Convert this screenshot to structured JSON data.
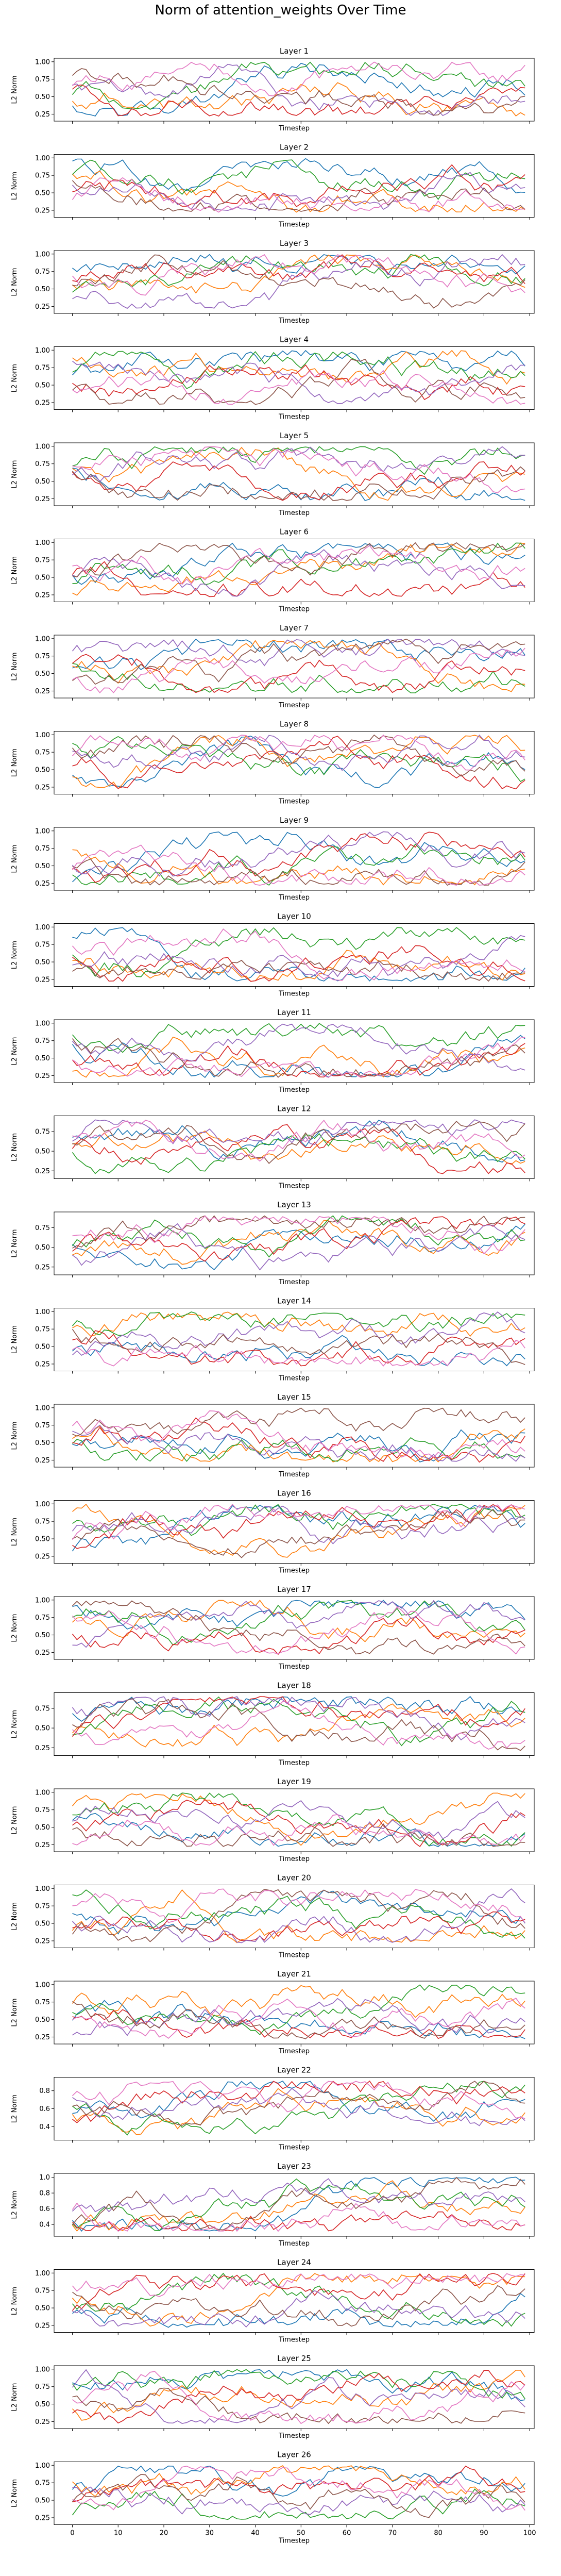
{
  "figure": {
    "title": "Norm of attention_weights Over Time"
  },
  "chart_data": {
    "type": "line",
    "title": "Norm of attention_weights Over Time",
    "xlabel": "Timestep",
    "ylabel": "L2 Norm",
    "xlim": [
      -4,
      101
    ],
    "xticks": [
      0,
      10,
      20,
      30,
      40,
      50,
      60,
      70,
      80,
      90,
      100
    ],
    "series_count_per_panel": 7,
    "series_colors": [
      "#1f77b4",
      "#ff7f0e",
      "#2ca02c",
      "#d62728",
      "#9467bd",
      "#8c564b",
      "#e377c2"
    ],
    "grid": false,
    "legend": false,
    "panels": [
      {
        "title": "Layer 1",
        "yticks": [
          "0.25",
          "0.50",
          "0.75",
          "1.00"
        ],
        "ylim": [
          0.15,
          1.05
        ],
        "show_xlabel": true
      },
      {
        "title": "Layer 2",
        "yticks": [
          "0.25",
          "0.50",
          "0.75",
          "1.00"
        ],
        "ylim": [
          0.15,
          1.05
        ],
        "show_xlabel": true
      },
      {
        "title": "Layer 3",
        "yticks": [
          "0.25",
          "0.50",
          "0.75",
          "1.00"
        ],
        "ylim": [
          0.15,
          1.05
        ],
        "show_xlabel": true
      },
      {
        "title": "Layer 4",
        "yticks": [
          "0.25",
          "0.50",
          "0.75",
          "1.00"
        ],
        "ylim": [
          0.15,
          1.05
        ],
        "show_xlabel": true
      },
      {
        "title": "Layer 5",
        "yticks": [
          "0.25",
          "0.50",
          "0.75",
          "1.00"
        ],
        "ylim": [
          0.15,
          1.05
        ],
        "show_xlabel": true
      },
      {
        "title": "Layer 6",
        "yticks": [
          "0.25",
          "0.50",
          "0.75",
          "1.00"
        ],
        "ylim": [
          0.15,
          1.05
        ],
        "show_xlabel": true
      },
      {
        "title": "Layer 7",
        "yticks": [
          "0.25",
          "0.50",
          "0.75",
          "1.00"
        ],
        "ylim": [
          0.15,
          1.05
        ],
        "show_xlabel": true
      },
      {
        "title": "Layer 8",
        "yticks": [
          "0.25",
          "0.50",
          "0.75",
          "1.00"
        ],
        "ylim": [
          0.15,
          1.05
        ],
        "show_xlabel": true
      },
      {
        "title": "Layer 9",
        "yticks": [
          "0.25",
          "0.50",
          "0.75",
          "1.00"
        ],
        "ylim": [
          0.15,
          1.05
        ],
        "show_xlabel": true
      },
      {
        "title": "Layer 10",
        "yticks": [
          "0.25",
          "0.50",
          "0.75",
          "1.00"
        ],
        "ylim": [
          0.15,
          1.05
        ],
        "show_xlabel": true
      },
      {
        "title": "Layer 11",
        "yticks": [
          "0.25",
          "0.50",
          "0.75",
          "1.00"
        ],
        "ylim": [
          0.15,
          1.05
        ],
        "show_xlabel": true
      },
      {
        "title": "Layer 12",
        "yticks": [
          "0.25",
          "0.50",
          "0.75"
        ],
        "ylim": [
          0.15,
          0.95
        ],
        "show_xlabel": true
      },
      {
        "title": "Layer 13",
        "yticks": [
          "0.25",
          "0.50",
          "0.75"
        ],
        "ylim": [
          0.15,
          0.95
        ],
        "show_xlabel": true
      },
      {
        "title": "Layer 14",
        "yticks": [
          "0.25",
          "0.50",
          "0.75",
          "1.00"
        ],
        "ylim": [
          0.15,
          1.05
        ],
        "show_xlabel": true
      },
      {
        "title": "Layer 15",
        "yticks": [
          "0.25",
          "0.50",
          "0.75",
          "1.00"
        ],
        "ylim": [
          0.15,
          1.05
        ],
        "show_xlabel": true
      },
      {
        "title": "Layer 16",
        "yticks": [
          "0.25",
          "0.50",
          "0.75",
          "1.00"
        ],
        "ylim": [
          0.15,
          1.05
        ],
        "show_xlabel": true
      },
      {
        "title": "Layer 17",
        "yticks": [
          "0.25",
          "0.50",
          "0.75",
          "1.00"
        ],
        "ylim": [
          0.15,
          1.05
        ],
        "show_xlabel": true
      },
      {
        "title": "Layer 18",
        "yticks": [
          "0.25",
          "0.50",
          "0.75"
        ],
        "ylim": [
          0.15,
          0.95
        ],
        "show_xlabel": true
      },
      {
        "title": "Layer 19",
        "yticks": [
          "0.25",
          "0.50",
          "0.75",
          "1.00"
        ],
        "ylim": [
          0.15,
          1.05
        ],
        "show_xlabel": true
      },
      {
        "title": "Layer 20",
        "yticks": [
          "0.25",
          "0.50",
          "0.75",
          "1.00"
        ],
        "ylim": [
          0.15,
          1.05
        ],
        "show_xlabel": true
      },
      {
        "title": "Layer 21",
        "yticks": [
          "0.25",
          "0.50",
          "0.75",
          "1.00"
        ],
        "ylim": [
          0.15,
          1.05
        ],
        "show_xlabel": true
      },
      {
        "title": "Layer 22",
        "yticks": [
          "0.4",
          "0.6",
          "0.8"
        ],
        "ylim": [
          0.25,
          0.95
        ],
        "show_xlabel": true
      },
      {
        "title": "Layer 23",
        "yticks": [
          "0.4",
          "0.6",
          "0.8",
          "1.0"
        ],
        "ylim": [
          0.25,
          1.05
        ],
        "show_xlabel": true
      },
      {
        "title": "Layer 24",
        "yticks": [
          "0.25",
          "0.50",
          "0.75",
          "1.00"
        ],
        "ylim": [
          0.15,
          1.05
        ],
        "show_xlabel": true
      },
      {
        "title": "Layer 25",
        "yticks": [
          "0.25",
          "0.50",
          "0.75",
          "1.00"
        ],
        "ylim": [
          0.15,
          1.05
        ],
        "show_xlabel": true
      },
      {
        "title": "Layer 26",
        "yticks": [
          "0.25",
          "0.50",
          "0.75",
          "1.00"
        ],
        "ylim": [
          0.15,
          1.05
        ],
        "show_xlabel": true,
        "show_xticklabels": true
      }
    ]
  }
}
